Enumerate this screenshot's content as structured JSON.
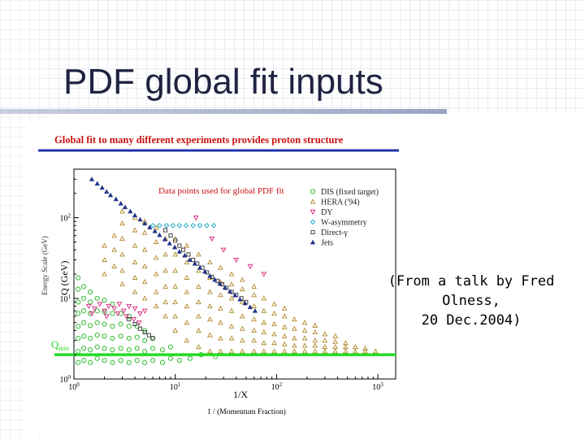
{
  "slide": {
    "title": "PDF global fit inputs"
  },
  "figure": {
    "headline": "Global fit to many different experiments provides proton structure",
    "annotation": "Data points used for global PDF fit",
    "threshold_label": "Q",
    "threshold_subscript": "min",
    "colors": {
      "headline": "#cc1111",
      "headline_rule": "#2233aa",
      "annotation": "#cc1111",
      "threshold": "#22dd22"
    }
  },
  "caption": {
    "line1": "(From a talk by Fred Olness,",
    "line2": "20 Dec.2004)"
  },
  "chart_data": {
    "type": "scatter",
    "x_scale": "log",
    "y_scale": "log",
    "xlim": [
      1,
      1500
    ],
    "ylim": [
      1,
      400
    ],
    "xlabel": "1/X",
    "xlabel_sub": "1 / (Momentum Fraction)",
    "ylabel": "Q (GeV)",
    "ylabel_sub": "Energy Scale (GeV)",
    "x_ticks": [
      {
        "v": 1,
        "label": "10^0"
      },
      {
        "v": 10,
        "label": "10^1"
      },
      {
        "v": 100,
        "label": "10^2"
      },
      {
        "v": 1000,
        "label": "10^3"
      }
    ],
    "y_ticks": [
      {
        "v": 1,
        "label": "10^0"
      },
      {
        "v": 10,
        "label": "10^1"
      },
      {
        "v": 100,
        "label": "10^2"
      }
    ],
    "threshold_q": 2,
    "legend_position": "top-right",
    "series": [
      {
        "name": "DIS (fixed target)",
        "marker": "circle",
        "color": "#33bb33",
        "points": [
          [
            1.1,
            1.6
          ],
          [
            1.1,
            2.2
          ],
          [
            1.1,
            3.2
          ],
          [
            1.1,
            4.5
          ],
          [
            1.1,
            6.5
          ],
          [
            1.1,
            9
          ],
          [
            1.1,
            13
          ],
          [
            1.1,
            18
          ],
          [
            1.25,
            1.7
          ],
          [
            1.25,
            2.4
          ],
          [
            1.25,
            3.4
          ],
          [
            1.25,
            5
          ],
          [
            1.25,
            7
          ],
          [
            1.25,
            10
          ],
          [
            1.25,
            14
          ],
          [
            1.45,
            1.6
          ],
          [
            1.45,
            2.3
          ],
          [
            1.45,
            3.2
          ],
          [
            1.45,
            4.6
          ],
          [
            1.45,
            6.5
          ],
          [
            1.45,
            9
          ],
          [
            1.45,
            12
          ],
          [
            1.7,
            1.8
          ],
          [
            1.7,
            2.5
          ],
          [
            1.7,
            3.5
          ],
          [
            1.7,
            5
          ],
          [
            1.7,
            7
          ],
          [
            1.7,
            10
          ],
          [
            2.0,
            1.7
          ],
          [
            2.0,
            2.4
          ],
          [
            2.0,
            3.4
          ],
          [
            2.0,
            4.8
          ],
          [
            2.0,
            6.8
          ],
          [
            2.0,
            9.5
          ],
          [
            2.4,
            1.6
          ],
          [
            2.4,
            2.3
          ],
          [
            2.4,
            3.2
          ],
          [
            2.4,
            4.5
          ],
          [
            2.4,
            6.5
          ],
          [
            2.4,
            8.5
          ],
          [
            2.9,
            1.7
          ],
          [
            2.9,
            2.4
          ],
          [
            2.9,
            3.4
          ],
          [
            2.9,
            4.8
          ],
          [
            2.9,
            6.5
          ],
          [
            3.5,
            1.6
          ],
          [
            3.5,
            2.3
          ],
          [
            3.5,
            3.2
          ],
          [
            3.5,
            4.5
          ],
          [
            3.5,
            6
          ],
          [
            4.2,
            1.7
          ],
          [
            4.2,
            2.4
          ],
          [
            4.2,
            3.3
          ],
          [
            4.2,
            4.5
          ],
          [
            5,
            1.6
          ],
          [
            5,
            2.2
          ],
          [
            5,
            3
          ],
          [
            5,
            4
          ],
          [
            6,
            1.7
          ],
          [
            6,
            2.4
          ],
          [
            6,
            3.2
          ],
          [
            7.5,
            1.6
          ],
          [
            7.5,
            2.3
          ],
          [
            9,
            1.8
          ],
          [
            9,
            2.5
          ],
          [
            11,
            1.7
          ],
          [
            14,
            1.8
          ],
          [
            18,
            2.0
          ],
          [
            25,
            1.9
          ]
        ]
      },
      {
        "name": "HERA ('94)",
        "marker": "triangle-up-open",
        "color": "#b08a2a",
        "points": [
          [
            2,
            20
          ],
          [
            2,
            30
          ],
          [
            2,
            45
          ],
          [
            2.5,
            25
          ],
          [
            2.5,
            40
          ],
          [
            2.5,
            60
          ],
          [
            3,
            15
          ],
          [
            3,
            22
          ],
          [
            3,
            35
          ],
          [
            3,
            55
          ],
          [
            3,
            85
          ],
          [
            3,
            120
          ],
          [
            4,
            12
          ],
          [
            4,
            18
          ],
          [
            4,
            28
          ],
          [
            4,
            45
          ],
          [
            4,
            70
          ],
          [
            4,
            100
          ],
          [
            5,
            10
          ],
          [
            5,
            16
          ],
          [
            5,
            25
          ],
          [
            5,
            40
          ],
          [
            5,
            65
          ],
          [
            5,
            90
          ],
          [
            6.5,
            8
          ],
          [
            6.5,
            12
          ],
          [
            6.5,
            20
          ],
          [
            6.5,
            32
          ],
          [
            6.5,
            50
          ],
          [
            6.5,
            75
          ],
          [
            8,
            6
          ],
          [
            8,
            9
          ],
          [
            8,
            14
          ],
          [
            8,
            22
          ],
          [
            8,
            35
          ],
          [
            8,
            55
          ],
          [
            10,
            4
          ],
          [
            10,
            6
          ],
          [
            10,
            9
          ],
          [
            10,
            14
          ],
          [
            10,
            22
          ],
          [
            10,
            35
          ],
          [
            10,
            55
          ],
          [
            13,
            3
          ],
          [
            13,
            5
          ],
          [
            13,
            8
          ],
          [
            13,
            12
          ],
          [
            13,
            18
          ],
          [
            13,
            28
          ],
          [
            13,
            45
          ],
          [
            17,
            2.5
          ],
          [
            17,
            4
          ],
          [
            17,
            6
          ],
          [
            17,
            9
          ],
          [
            17,
            14
          ],
          [
            17,
            22
          ],
          [
            17,
            35
          ],
          [
            22,
            2.2
          ],
          [
            22,
            3.5
          ],
          [
            22,
            5.5
          ],
          [
            22,
            8
          ],
          [
            22,
            12
          ],
          [
            22,
            18
          ],
          [
            22,
            28
          ],
          [
            28,
            2.2
          ],
          [
            28,
            3.2
          ],
          [
            28,
            5
          ],
          [
            28,
            7.5
          ],
          [
            28,
            11
          ],
          [
            28,
            16
          ],
          [
            28,
            24
          ],
          [
            36,
            2.2
          ],
          [
            36,
            3.2
          ],
          [
            36,
            4.5
          ],
          [
            36,
            7
          ],
          [
            36,
            10
          ],
          [
            36,
            15
          ],
          [
            36,
            20
          ],
          [
            46,
            2.2
          ],
          [
            46,
            3
          ],
          [
            46,
            4.2
          ],
          [
            46,
            6
          ],
          [
            46,
            9
          ],
          [
            46,
            13
          ],
          [
            46,
            17
          ],
          [
            60,
            2.2
          ],
          [
            60,
            3
          ],
          [
            60,
            4
          ],
          [
            60,
            5.5
          ],
          [
            60,
            8
          ],
          [
            60,
            11
          ],
          [
            60,
            14
          ],
          [
            75,
            2.2
          ],
          [
            75,
            2.8
          ],
          [
            75,
            3.8
          ],
          [
            75,
            5
          ],
          [
            75,
            7
          ],
          [
            75,
            10
          ],
          [
            95,
            2.2
          ],
          [
            95,
            2.8
          ],
          [
            95,
            3.6
          ],
          [
            95,
            4.8
          ],
          [
            95,
            6.5
          ],
          [
            95,
            8.5
          ],
          [
            120,
            2.2
          ],
          [
            120,
            2.7
          ],
          [
            120,
            3.4
          ],
          [
            120,
            4.4
          ],
          [
            120,
            6
          ],
          [
            120,
            7.5
          ],
          [
            150,
            2.2
          ],
          [
            150,
            2.6
          ],
          [
            150,
            3.2
          ],
          [
            150,
            4.2
          ],
          [
            150,
            5.5
          ],
          [
            190,
            2.2
          ],
          [
            190,
            2.6
          ],
          [
            190,
            3.2
          ],
          [
            190,
            4
          ],
          [
            190,
            5
          ],
          [
            240,
            2.2
          ],
          [
            240,
            2.6
          ],
          [
            240,
            3
          ],
          [
            240,
            3.8
          ],
          [
            240,
            4.6
          ],
          [
            300,
            2.2
          ],
          [
            300,
            2.5
          ],
          [
            300,
            3
          ],
          [
            300,
            3.6
          ],
          [
            380,
            2.2
          ],
          [
            380,
            2.5
          ],
          [
            380,
            2.9
          ],
          [
            380,
            3.4
          ],
          [
            480,
            2.2
          ],
          [
            480,
            2.5
          ],
          [
            480,
            2.8
          ],
          [
            600,
            2.2
          ],
          [
            600,
            2.5
          ],
          [
            750,
            2.2
          ],
          [
            750,
            2.4
          ],
          [
            950,
            2.2
          ]
        ]
      },
      {
        "name": "DY",
        "marker": "triangle-down-open",
        "color": "#dd3388",
        "points": [
          [
            1.4,
            8
          ],
          [
            1.6,
            7.5
          ],
          [
            1.8,
            8.5
          ],
          [
            2,
            7
          ],
          [
            2.2,
            8
          ],
          [
            2.5,
            7.5
          ],
          [
            2.8,
            8.5
          ],
          [
            3.1,
            7
          ],
          [
            3.5,
            8
          ],
          [
            4,
            7.5
          ],
          [
            4.5,
            6.5
          ],
          [
            5,
            7
          ],
          [
            1.5,
            6.5
          ],
          [
            2.1,
            6
          ],
          [
            2.7,
            6.5
          ],
          [
            3.3,
            6
          ],
          [
            3.9,
            5.5
          ],
          [
            4.4,
            5
          ],
          [
            16,
            100
          ],
          [
            23,
            55
          ],
          [
            30,
            40
          ],
          [
            40,
            30
          ],
          [
            55,
            25
          ],
          [
            75,
            20
          ]
        ]
      },
      {
        "name": "W-asymmetry",
        "marker": "diamond-open",
        "color": "#22aacc",
        "points": [
          [
            6,
            80
          ],
          [
            7,
            80
          ],
          [
            8.2,
            80
          ],
          [
            9.5,
            80
          ],
          [
            11,
            80
          ],
          [
            12.8,
            80
          ],
          [
            15,
            80
          ],
          [
            17.5,
            80
          ],
          [
            20.5,
            80
          ],
          [
            24,
            80
          ]
        ]
      },
      {
        "name": "Direct-γ",
        "marker": "square-open",
        "color": "#333333",
        "points": [
          [
            8,
            70
          ],
          [
            9,
            60
          ],
          [
            10,
            52
          ],
          [
            11,
            45
          ],
          [
            12,
            40
          ],
          [
            13.5,
            35
          ],
          [
            15,
            30
          ],
          [
            16.5,
            27
          ],
          [
            18.5,
            24
          ],
          [
            20.5,
            21
          ],
          [
            23,
            18.5
          ],
          [
            26,
            16.5
          ],
          [
            29,
            15
          ],
          [
            32,
            13.5
          ],
          [
            36,
            12
          ],
          [
            40,
            11
          ],
          [
            45,
            10
          ],
          [
            50,
            9
          ],
          [
            3.5,
            5.5
          ],
          [
            4,
            4.8
          ],
          [
            4.5,
            4.2
          ],
          [
            5,
            3.8
          ],
          [
            5.5,
            3.5
          ],
          [
            6,
            3.2
          ]
        ]
      },
      {
        "name": "Jets",
        "marker": "triangle-up-filled",
        "color": "#223388",
        "points": [
          [
            1.5,
            300
          ],
          [
            1.7,
            265
          ],
          [
            1.9,
            235
          ],
          [
            2.1,
            210
          ],
          [
            2.3,
            190
          ],
          [
            2.6,
            170
          ],
          [
            2.9,
            150
          ],
          [
            3.2,
            135
          ],
          [
            3.6,
            120
          ],
          [
            4,
            107
          ],
          [
            4.5,
            95
          ],
          [
            5,
            85
          ],
          [
            5.6,
            76
          ],
          [
            6.3,
            68
          ],
          [
            7,
            61
          ],
          [
            7.9,
            54
          ],
          [
            8.8,
            48
          ],
          [
            9.9,
            43
          ],
          [
            11,
            38
          ],
          [
            12.4,
            34
          ],
          [
            13.9,
            30
          ],
          [
            15.6,
            27
          ],
          [
            17.5,
            24
          ],
          [
            19.6,
            21.5
          ],
          [
            22,
            19
          ],
          [
            24.6,
            17
          ],
          [
            27.6,
            15.2
          ],
          [
            31,
            13.6
          ],
          [
            34.7,
            12.2
          ],
          [
            38.9,
            10.9
          ],
          [
            43.6,
            9.7
          ],
          [
            48.9,
            8.7
          ],
          [
            54.8,
            7.8
          ],
          [
            61.4,
            7
          ]
        ]
      }
    ]
  }
}
